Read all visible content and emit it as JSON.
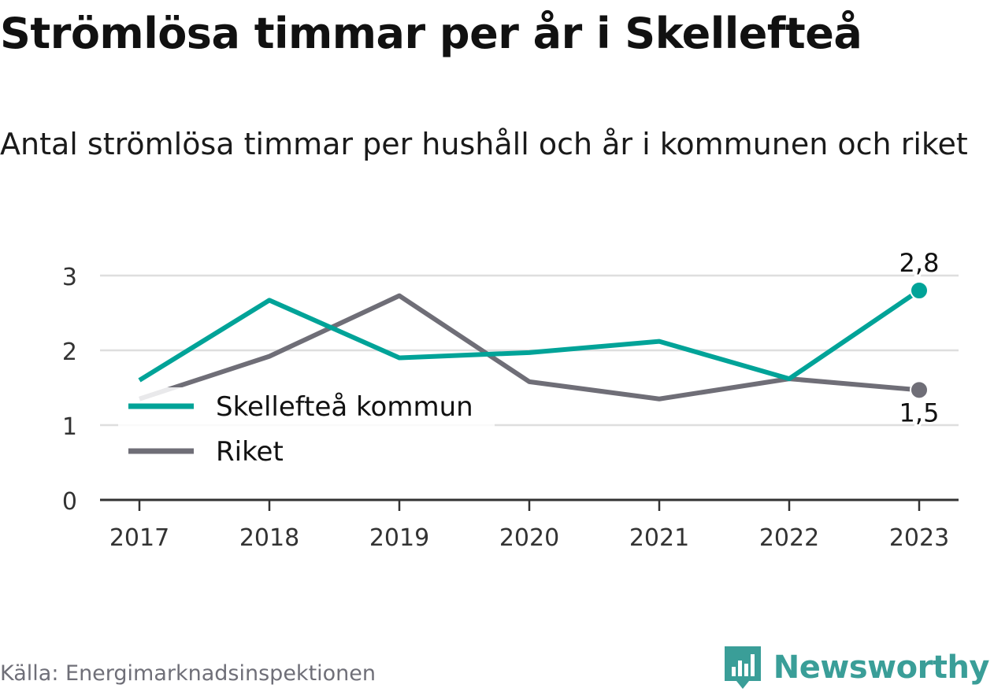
{
  "title": "Strömlösa timmar per år i Skellefteå",
  "subtitle": "Antal strömlösa timmar per hushåll och år i kommunen och riket",
  "source": "Källa: Energimarknadsinspektionen",
  "brand": {
    "name": "Newsworthy",
    "icon": "bar-chart-logo-icon",
    "color": "#3a9e98"
  },
  "chart_data": {
    "type": "line",
    "x": [
      "2017",
      "2018",
      "2019",
      "2020",
      "2021",
      "2022",
      "2023"
    ],
    "yticks": [
      "0",
      "1",
      "2",
      "3"
    ],
    "ylim": [
      0,
      3
    ],
    "grid": true,
    "legend_position": "bottom-left",
    "series": [
      {
        "name": "Skellefteå kommun",
        "color": "#00a398",
        "values": [
          1.6,
          2.67,
          1.9,
          1.97,
          2.12,
          1.62,
          2.8
        ],
        "end_label": "2,8"
      },
      {
        "name": "Riket",
        "color": "#6f6e77",
        "values": [
          1.35,
          1.92,
          2.73,
          1.58,
          1.35,
          1.62,
          1.47
        ],
        "end_label": "1,5"
      }
    ]
  }
}
